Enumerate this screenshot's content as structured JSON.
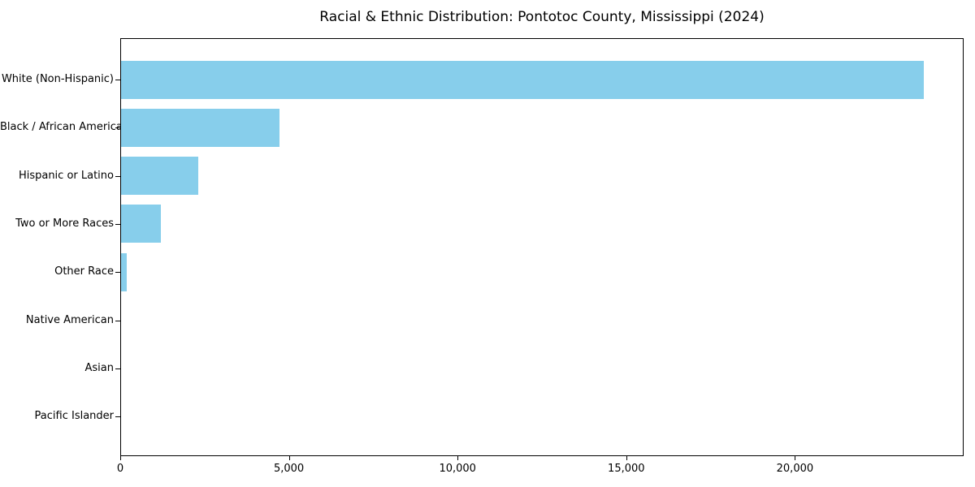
{
  "chart_data": {
    "type": "bar",
    "orientation": "horizontal",
    "title": "Racial & Ethnic Distribution: Pontotoc County, Mississippi (2024)",
    "categories": [
      "White (Non-Hispanic)",
      "Black / African American",
      "Hispanic or Latino",
      "Two or More Races",
      "Other Race",
      "Native American",
      "Asian",
      "Pacific Islander"
    ],
    "values": [
      23800,
      4700,
      2300,
      1180,
      170,
      0,
      0,
      0
    ],
    "xlabel": "",
    "ylabel": "",
    "xlim": [
      0,
      25000
    ],
    "x_ticks": [
      0,
      5000,
      10000,
      15000,
      20000
    ],
    "x_tick_labels": [
      "0",
      "5,000",
      "10,000",
      "15,000",
      "20,000"
    ],
    "grid": false,
    "legend": null,
    "bar_color": "#87CEEB",
    "axis_color": "#000000",
    "background_color": "#ffffff"
  }
}
